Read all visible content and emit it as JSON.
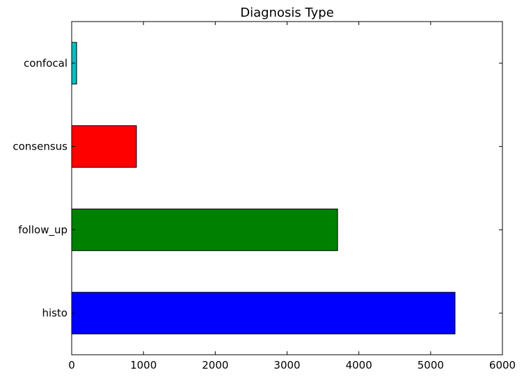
{
  "chart_data": {
    "type": "bar",
    "orientation": "horizontal",
    "title": "Diagnosis Type",
    "xlabel": "",
    "ylabel": "",
    "categories": [
      "histo",
      "follow_up",
      "consensus",
      "confocal"
    ],
    "values": [
      5340,
      3704,
      902,
      69
    ],
    "colors": [
      "#0000ff",
      "#008000",
      "#ff0000",
      "#00bfbf"
    ],
    "xlim": [
      0,
      6000
    ],
    "xticks": [
      0,
      1000,
      2000,
      3000,
      4000,
      5000,
      6000
    ],
    "grid": false,
    "legend": "none"
  }
}
